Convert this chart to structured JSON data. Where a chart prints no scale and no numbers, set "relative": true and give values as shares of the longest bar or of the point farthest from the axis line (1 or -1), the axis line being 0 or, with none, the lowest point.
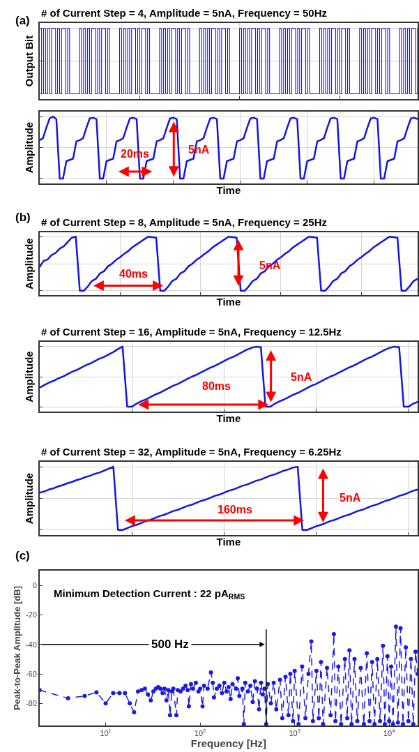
{
  "chart_data": [
    {
      "type": "step",
      "relative": true,
      "grid": true,
      "title": "# of Current Step = 4, Amplitude = 5nA, Frequency = 50Hz",
      "ylabel": "Output Bit",
      "annotations": [
        "(a)"
      ],
      "color": "#0000ff",
      "categories": [
        null,
        null,
        null,
        null,
        null,
        null,
        null,
        null,
        null,
        null,
        null,
        null,
        null,
        null,
        null,
        null,
        null,
        null,
        null,
        null,
        null,
        null,
        null,
        null,
        null,
        null,
        null,
        null,
        null,
        null,
        null,
        null,
        null,
        null,
        null,
        null,
        null,
        null,
        null,
        null,
        null,
        null,
        null,
        null,
        null,
        null,
        null,
        null,
        null,
        null,
        null,
        null,
        null,
        null,
        null,
        null,
        null,
        null,
        null,
        null,
        null,
        null,
        null,
        null,
        null,
        null,
        null,
        null,
        null,
        null,
        null,
        null,
        null,
        null,
        null,
        null,
        null,
        null,
        null,
        null,
        null,
        null,
        null,
        null,
        null,
        null,
        null,
        null,
        null,
        null,
        null,
        null,
        null,
        null,
        null,
        null,
        null,
        null,
        null,
        null,
        null,
        null,
        null,
        null,
        null,
        null,
        null,
        null,
        null,
        null,
        null,
        null,
        null,
        null,
        null,
        null,
        null,
        null,
        null,
        null,
        null,
        null,
        null,
        null,
        null,
        null,
        null,
        null,
        null,
        null,
        null,
        null,
        null,
        null,
        null,
        null,
        null,
        null,
        null,
        null,
        null,
        null,
        null,
        null,
        null,
        null,
        null,
        null,
        null,
        null,
        null,
        null,
        null,
        null,
        null,
        null,
        null,
        null,
        null,
        null,
        null,
        null,
        null,
        null,
        null,
        null,
        null,
        null,
        null,
        null,
        null,
        null,
        null,
        null,
        null,
        null,
        null,
        null,
        null,
        null,
        null,
        null,
        null,
        null,
        null,
        null,
        null,
        null,
        null,
        null
      ],
      "values": [
        1,
        0,
        1,
        0,
        1,
        0,
        1,
        1,
        0,
        1,
        0,
        1,
        1,
        0,
        1,
        0,
        0,
        0,
        0,
        0,
        1,
        0,
        1,
        0,
        1,
        0,
        1,
        1,
        0,
        1,
        0,
        1,
        1,
        0,
        1,
        0,
        0,
        0,
        0,
        0,
        1,
        0,
        1,
        0,
        1,
        0,
        1,
        1,
        0,
        1,
        0,
        1,
        1,
        0,
        1,
        0,
        0,
        0,
        0,
        0,
        1,
        0,
        1,
        0,
        1,
        0,
        1,
        1,
        0,
        1,
        0,
        1,
        1,
        0,
        1,
        0,
        0,
        0,
        0,
        0,
        1,
        0,
        1,
        0,
        1,
        0,
        1,
        1,
        0,
        1,
        0,
        1,
        1,
        0,
        1,
        0,
        0,
        0,
        0,
        0,
        1,
        0,
        1,
        0,
        1,
        0,
        1,
        1,
        0,
        1,
        0,
        1,
        1,
        0,
        1,
        0,
        0,
        0,
        0,
        0,
        1,
        0,
        1,
        0,
        1,
        0,
        1,
        1,
        0,
        1,
        0,
        1,
        1,
        0,
        1,
        0,
        0,
        0,
        0,
        0,
        1,
        0,
        1,
        0,
        1,
        0,
        1,
        1,
        0,
        1,
        0,
        1,
        1,
        0,
        1,
        0,
        0,
        0,
        0,
        0,
        1,
        0,
        1,
        0,
        1,
        0,
        1,
        1,
        0,
        1,
        0,
        1,
        1,
        0,
        1,
        0,
        0,
        0,
        0,
        0,
        1,
        0,
        1,
        0,
        1,
        0,
        1,
        1,
        0,
        1
      ]
    },
    {
      "type": "line",
      "relative": true,
      "grid": true,
      "xlabel": "Time",
      "ylabel": "Amplitude",
      "annotations": [
        "20ms",
        "5nA"
      ],
      "color": "#1414e6",
      "categories": [
        null,
        null,
        null,
        null,
        null,
        null,
        null,
        null,
        null,
        null,
        null,
        null,
        null,
        null,
        null,
        null,
        null,
        null,
        null,
        null,
        null,
        null,
        null,
        null,
        null,
        null,
        null,
        null,
        null,
        null,
        null,
        null,
        null,
        null,
        null,
        null,
        null,
        null,
        null,
        null,
        null,
        null,
        null,
        null,
        null,
        null,
        null,
        null,
        null,
        null,
        null,
        null,
        null,
        null,
        null,
        null,
        null,
        null,
        null,
        null,
        null,
        null,
        null,
        null,
        null,
        null,
        null,
        null,
        null,
        null,
        null,
        null,
        null,
        null,
        null,
        null,
        null,
        null,
        null,
        null,
        null,
        null,
        null,
        null,
        null,
        null,
        null,
        null,
        null,
        null,
        null,
        null,
        null,
        null,
        null,
        null,
        null,
        null,
        null,
        null,
        null,
        null,
        null,
        null,
        null,
        null,
        null,
        null,
        null,
        null,
        null,
        null,
        null,
        null
      ],
      "values": [
        0.62,
        0.65,
        0.82,
        0.97,
        1,
        0.96,
        0,
        0,
        0.28,
        0.3,
        0.32,
        0.6,
        0.62,
        0.65,
        0.82,
        0.97,
        0.98,
        0.96,
        0,
        0,
        0.28,
        0.3,
        0.32,
        0.6,
        0.62,
        0.65,
        0.82,
        0.97,
        0.98,
        0.96,
        0,
        0,
        0.28,
        0.3,
        0.32,
        0.6,
        0.62,
        0.65,
        0.82,
        0.97,
        0.98,
        0.96,
        0,
        0,
        0.28,
        0.3,
        0.32,
        0.6,
        0.62,
        0.65,
        0.82,
        0.97,
        0.98,
        0.96,
        0,
        0,
        0.28,
        0.3,
        0.32,
        0.6,
        0.62,
        0.65,
        0.82,
        0.97,
        0.98,
        0.96,
        0,
        0,
        0.28,
        0.3,
        0.32,
        0.6,
        0.62,
        0.65,
        0.82,
        0.97,
        0.98,
        0.96,
        0,
        0,
        0.28,
        0.3,
        0.32,
        0.6,
        0.62,
        0.65,
        0.82,
        0.97,
        0.98,
        0.96,
        0,
        0,
        0.28,
        0.3,
        0.32,
        0.6,
        0.62,
        0.65,
        0.82,
        0.97,
        0.98,
        0.96,
        0,
        0,
        0.28,
        0.3,
        0.32,
        0.6,
        0.62,
        0.65,
        0.82,
        0.97,
        0.98,
        0.96
      ]
    },
    {
      "type": "line",
      "relative": true,
      "grid": true,
      "title": "# of Current Step = 8, Amplitude = 5nA, Frequency = 25Hz",
      "xlabel": "Time",
      "ylabel": "Amplitude",
      "annotations": [
        "(b)",
        "40ms",
        "5nA"
      ],
      "color": "#1414e6",
      "categories": [
        null,
        null,
        null,
        null,
        null,
        null,
        null,
        null,
        null,
        null,
        null,
        null,
        null,
        null,
        null,
        null,
        null,
        null,
        null,
        null,
        null,
        null,
        null,
        null,
        null,
        null,
        null,
        null,
        null,
        null,
        null,
        null,
        null,
        null,
        null,
        null,
        null,
        null,
        null,
        null,
        null,
        null,
        null,
        null,
        null,
        null,
        null,
        null,
        null,
        null,
        null,
        null,
        null,
        null,
        null,
        null,
        null,
        null,
        null,
        null,
        null,
        null,
        null,
        null,
        null,
        null,
        null,
        null,
        null,
        null,
        null,
        null,
        null,
        null,
        null,
        null,
        null,
        null,
        null,
        null,
        null,
        null,
        null,
        null,
        null,
        null,
        null,
        null,
        null,
        null,
        null,
        null,
        null,
        null,
        null
      ],
      "values": [
        0.44,
        0.55,
        0.58,
        0.66,
        0.7,
        0.78,
        0.82,
        0.9,
        0.98,
        1.0,
        0,
        0,
        0.08,
        0.18,
        0.22,
        0.32,
        0.36,
        0.45,
        0.5,
        0.57,
        0.62,
        0.68,
        0.73,
        0.8,
        0.85,
        0.9,
        0.95,
        1,
        0.99,
        0.98,
        0,
        0,
        0.08,
        0.18,
        0.22,
        0.32,
        0.36,
        0.45,
        0.5,
        0.57,
        0.62,
        0.68,
        0.73,
        0.8,
        0.85,
        0.9,
        0.95,
        1,
        0.99,
        0.98,
        0,
        0,
        0.08,
        0.18,
        0.22,
        0.32,
        0.36,
        0.45,
        0.5,
        0.57,
        0.62,
        0.68,
        0.73,
        0.8,
        0.85,
        0.9,
        0.95,
        1,
        0.99,
        0.98,
        0,
        0,
        0.08,
        0.18,
        0.22,
        0.32,
        0.36,
        0.45,
        0.5,
        0.57,
        0.62,
        0.68,
        0.73,
        0.8,
        0.85,
        0.9,
        0.95,
        1,
        0.99,
        0.98,
        0,
        0,
        0.08,
        0.18,
        0.22
      ]
    },
    {
      "type": "line",
      "relative": true,
      "grid": true,
      "title": "# of Current Step = 16, Amplitude = 5nA, Frequency = 12.5Hz",
      "xlabel": "Time",
      "ylabel": "Amplitude",
      "annotations": [
        "80ms",
        "5nA"
      ],
      "color": "#1414e6",
      "categories": [
        null,
        null,
        null,
        null,
        null,
        null,
        null,
        null,
        null,
        null,
        null,
        null,
        null,
        null,
        null,
        null,
        null,
        null,
        null,
        null,
        null,
        null,
        null,
        null,
        null,
        null,
        null,
        null,
        null,
        null,
        null,
        null,
        null,
        null,
        null,
        null,
        null,
        null,
        null,
        null,
        null,
        null,
        null,
        null,
        null,
        null,
        null,
        null,
        null,
        null,
        null,
        null,
        null,
        null,
        null,
        null,
        null,
        null,
        null,
        null,
        null,
        null,
        null,
        null,
        null,
        null,
        null,
        null,
        null,
        null,
        null,
        null,
        null,
        null,
        null,
        null,
        null,
        null,
        null,
        null,
        null,
        null,
        null
      ],
      "values": [
        0.32,
        0.36,
        0.4,
        0.43,
        0.47,
        0.5,
        0.54,
        0.58,
        0.61,
        0.65,
        0.69,
        0.72,
        0.76,
        0.8,
        0.83,
        0.87,
        0.91,
        0.96,
        1,
        0,
        0,
        0.05,
        0.09,
        0.12,
        0.16,
        0.2,
        0.23,
        0.27,
        0.31,
        0.35,
        0.38,
        0.42,
        0.46,
        0.5,
        0.53,
        0.57,
        0.61,
        0.65,
        0.68,
        0.72,
        0.76,
        0.8,
        0.83,
        0.87,
        0.91,
        0.95,
        0.98,
        1,
        0.99,
        0,
        0,
        0.05,
        0.09,
        0.12,
        0.16,
        0.2,
        0.23,
        0.27,
        0.31,
        0.35,
        0.38,
        0.42,
        0.46,
        0.5,
        0.53,
        0.57,
        0.61,
        0.65,
        0.68,
        0.72,
        0.76,
        0.8,
        0.83,
        0.87,
        0.91,
        0.95,
        0.98,
        1,
        0.99,
        0,
        0,
        0.05,
        0.08
      ]
    },
    {
      "type": "line",
      "relative": true,
      "grid": true,
      "title": "# of Current Step = 32, Amplitude = 5nA, Frequency = 6.25Hz",
      "xlabel": "Time",
      "ylabel": "Amplitude",
      "annotations": [
        "160ms",
        "5nA"
      ],
      "color": "#1414e6",
      "categories": [
        null,
        null,
        null,
        null,
        null,
        null,
        null,
        null,
        null,
        null,
        null,
        null,
        null,
        null,
        null,
        null,
        null,
        null,
        null,
        null,
        null,
        null,
        null,
        null,
        null,
        null,
        null,
        null,
        null,
        null,
        null,
        null,
        null,
        null,
        null,
        null,
        null,
        null,
        null,
        null,
        null,
        null,
        null,
        null,
        null,
        null,
        null,
        null,
        null,
        null,
        null,
        null,
        null,
        null,
        null,
        null,
        null,
        null,
        null,
        null,
        null,
        null,
        null,
        null,
        null,
        null,
        null,
        null,
        null,
        null,
        null,
        null,
        null,
        null,
        null,
        null,
        null,
        null,
        null,
        null,
        null,
        null,
        null
      ],
      "values": [
        0.59,
        0.61,
        0.64,
        0.66,
        0.69,
        0.71,
        0.74,
        0.76,
        0.79,
        0.81,
        0.84,
        0.86,
        0.89,
        0.91,
        0.94,
        0.97,
        1.0,
        0,
        0,
        0.03,
        0.06,
        0.08,
        0.11,
        0.14,
        0.16,
        0.19,
        0.22,
        0.24,
        0.27,
        0.3,
        0.32,
        0.35,
        0.38,
        0.4,
        0.43,
        0.46,
        0.48,
        0.51,
        0.54,
        0.56,
        0.59,
        0.62,
        0.64,
        0.67,
        0.7,
        0.72,
        0.75,
        0.78,
        0.8,
        0.83,
        0.86,
        0.88,
        0.91,
        0.94,
        0.96,
        0.99,
        1.0,
        0,
        0,
        0.03,
        0.06,
        0.08,
        0.11,
        0.14,
        0.16,
        0.19,
        0.22,
        0.24,
        0.27,
        0.3,
        0.32,
        0.35,
        0.38,
        0.4,
        0.43,
        0.46,
        0.48,
        0.51,
        0.54,
        0.56,
        0.59,
        0.62,
        0.64
      ]
    },
    {
      "type": "line",
      "xlabel": "Frequency [Hz]",
      "ylabel": "Peak-to-Peak Amplitude [dB]",
      "annotations": [
        "(c)",
        "Minimum Detection Current : 22 pA$_{RMS}$"
      ],
      "color": "#1a1ae6",
      "log": "x",
      "marker": "circle",
      "line_style": "dashed",
      "xlim": [
        2,
        20000
      ],
      "xticks": [
        {
          "value": 10,
          "label": "10$^{1}$"
        },
        {
          "value": 100,
          "label": "10$^{2}$"
        },
        {
          "value": 1000,
          "label": "10$^{3}$"
        },
        {
          "value": 10000,
          "label": "10$^{4}$"
        }
      ],
      "ylim": [
        -95,
        10
      ],
      "yticks": [
        0,
        -20,
        -40,
        -60,
        -80
      ],
      "ref_lines": [
        {
          "axis": "x",
          "value": 500,
          "label": "500 Hz",
          "color": "#000000"
        }
      ],
      "x": [
        2,
        4,
        6,
        8,
        10,
        12,
        14,
        16,
        18,
        20,
        22,
        24,
        26,
        28,
        30,
        32,
        34,
        36,
        38,
        40,
        42,
        44,
        46,
        48,
        50,
        52,
        56,
        58,
        62,
        66,
        70,
        74,
        76,
        80,
        84,
        90,
        96,
        100,
        106,
        110,
        120,
        130,
        136,
        140,
        150,
        160,
        170,
        180,
        190,
        200,
        210,
        220,
        240,
        250,
        260,
        280,
        290,
        300,
        320,
        340,
        360,
        380,
        400,
        420,
        440,
        460,
        480,
        500,
        520,
        560,
        600,
        640,
        700,
        740,
        800,
        860,
        900,
        960,
        1000,
        1100,
        1200,
        1300,
        1400,
        1500,
        1560,
        1700,
        1800,
        1900,
        2000,
        2200,
        2400,
        2600,
        2700,
        2900,
        3100,
        3400,
        3600,
        3800,
        4000,
        4300,
        4600,
        5000,
        5400,
        5800,
        6200,
        6600,
        7000,
        7500,
        8000,
        8600,
        9000,
        9600,
        10000,
        10500,
        11000,
        11800,
        12400,
        13200,
        14000,
        15000,
        16000,
        17000,
        18000,
        19000,
        20000
      ],
      "values": [
        -71,
        -76.5,
        -75,
        -72.5,
        -80,
        -73,
        -73,
        -73,
        -80,
        -86,
        -72,
        -71,
        -70,
        -74,
        -78,
        -72,
        -70,
        -69,
        -70,
        -73,
        -70,
        -78,
        -71,
        -88,
        -72,
        -70,
        -88,
        -71,
        -72,
        -70,
        -68,
        -71,
        -82,
        -67,
        -70,
        -66,
        -72,
        -70,
        -82,
        -68,
        -70,
        -59,
        -66,
        -76,
        -70,
        -68,
        -73,
        -66,
        -72,
        -69,
        -77,
        -67,
        -70,
        -63,
        -75,
        -70,
        -94,
        -66,
        -72,
        -68,
        -79,
        -65,
        -70,
        -84,
        -66,
        -74,
        -70,
        -94,
        -67,
        -80,
        -66,
        -84,
        -64,
        -90,
        -62,
        -88,
        -60,
        -92,
        -58,
        -94,
        -55,
        -90,
        -60,
        -38,
        -92,
        -58,
        -90,
        -52,
        -94,
        -56,
        -88,
        -33,
        -92,
        -55,
        -94,
        -50,
        -90,
        -44,
        -94,
        -50,
        -92,
        -56,
        -94,
        -46,
        -92,
        -52,
        -94,
        -50,
        -92,
        -41,
        -94,
        -48,
        -92,
        -55,
        -94,
        -28,
        -93,
        -29,
        -94,
        -42,
        -92,
        -50,
        -94,
        -45,
        -60
      ]
    }
  ]
}
